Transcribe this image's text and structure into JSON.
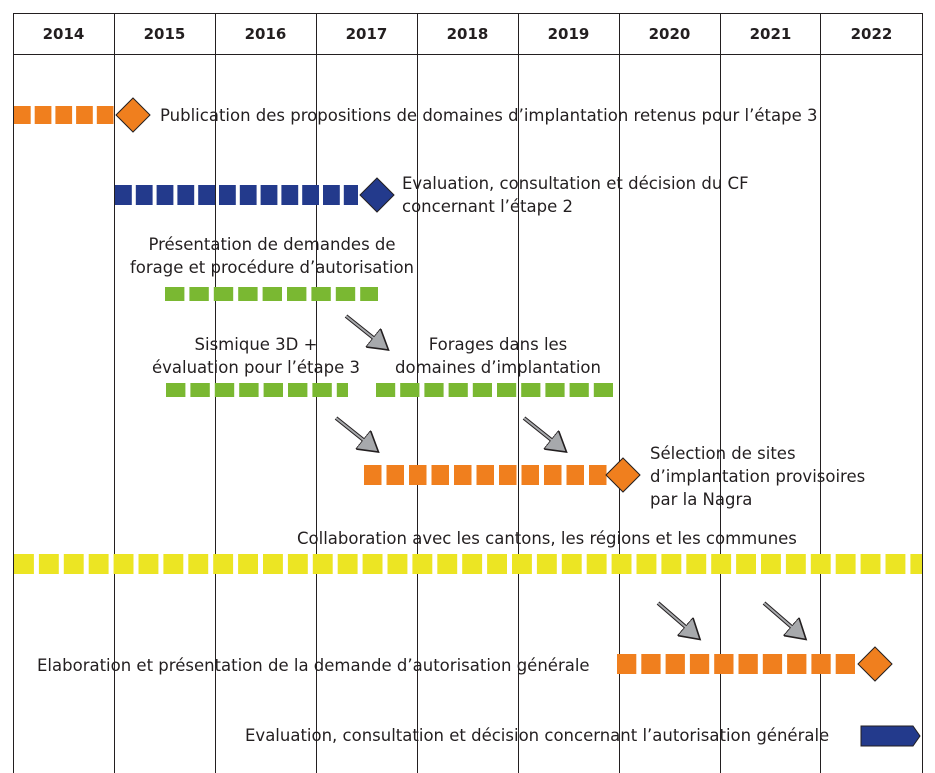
{
  "colors": {
    "orange": "#f07f1e",
    "navy": "#233a8c",
    "green": "#7ab832",
    "yellow": "#ece523",
    "arrow_gray": "#a7a9ac",
    "line": "#231f20"
  },
  "years": [
    "2014",
    "2015",
    "2016",
    "2017",
    "2018",
    "2019",
    "2020",
    "2021",
    "2022"
  ],
  "labels": {
    "publication": "Publication des propositions de domaines d’implantation retenus pour l’étape 3",
    "evaluation_cf_line1": "Evaluation, consultation et décision du CF",
    "evaluation_cf_line2": "concernant l’étape 2",
    "forage_line1": "Présentation de demandes de",
    "forage_line2": "forage et procédure d’autorisation",
    "sismique_line1": "Sismique 3D +",
    "sismique_line2": "évaluation pour l’étape 3",
    "forages_line1": "Forages dans les",
    "forages_line2": "domaines d’implantation",
    "selection_line1": "Sélection de sites",
    "selection_line2": "d’implantation provisoires",
    "selection_line3": "par la Nagra",
    "collaboration": "Collaboration avec les cantons, les régions et les communes",
    "elaboration": "Elaboration et présentation de la demande d’autorisation générale",
    "evaluation_ag": "Evaluation, consultation et décision concernant l’autorisation générale"
  }
}
